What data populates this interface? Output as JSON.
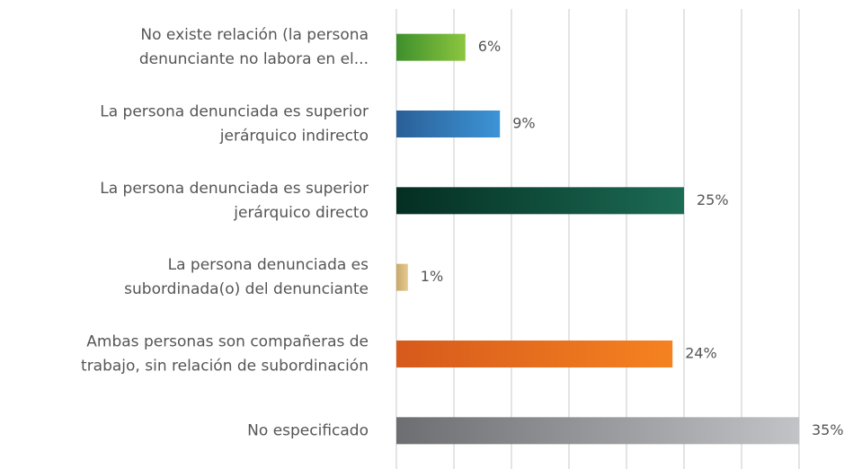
{
  "chart_data": {
    "type": "bar",
    "orientation": "horizontal",
    "categories": [
      [
        "No existe relación (la persona",
        "denunciante no labora en el..."
      ],
      [
        "La persona denunciada es superior",
        "jerárquico indirecto"
      ],
      [
        "La persona denunciada es superior",
        "jerárquico directo"
      ],
      [
        "La persona denunciada es",
        "subordinada(o) del denunciante"
      ],
      [
        "Ambas personas son compañeras de",
        "trabajo, sin relación de subordinación"
      ],
      [
        "No especificado"
      ]
    ],
    "values": [
      6,
      9,
      25,
      1,
      24,
      35
    ],
    "value_labels": [
      "6%",
      "9%",
      "25%",
      "1%",
      "24%",
      "35%"
    ],
    "colors": [
      [
        "#3d8f2c",
        "#8cc63f"
      ],
      [
        "#2a5f97",
        "#3d94d6"
      ],
      [
        "#042e22",
        "#1c6b54"
      ],
      [
        "#c9a96b",
        "#e6c98f"
      ],
      [
        "#d65a1c",
        "#f58220"
      ],
      [
        "#6d6e71",
        "#c2c3c6"
      ]
    ],
    "xlim": [
      0,
      35
    ],
    "xticks": [
      0,
      5,
      10,
      15,
      20,
      25,
      30,
      35
    ],
    "grid": true
  }
}
